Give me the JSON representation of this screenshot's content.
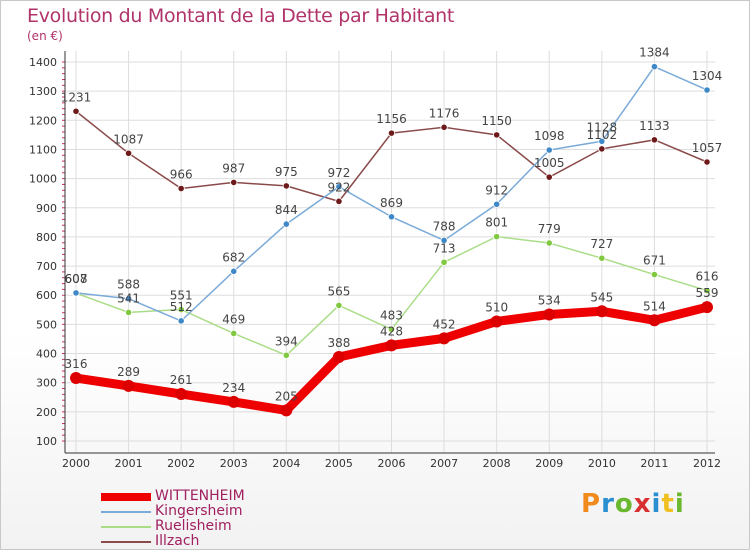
{
  "header": {
    "title": "Evolution du Montant de la Dette par Habitant",
    "subtitle": "(en €)"
  },
  "colors": {
    "title": "#b0336a",
    "grid": "#dddddd",
    "axis": "#333333",
    "tick_minor": "#cc3366"
  },
  "logo": {
    "text": "Proxiti",
    "colors": [
      "#f08a1c",
      "#2a8fd0",
      "#6ab82e",
      "#d83030",
      "#2a8fd0",
      "#f0c020",
      "#6ab82e"
    ]
  },
  "chart_data": {
    "type": "line",
    "title": "Evolution du Montant de la Dette par Habitant",
    "subtitle": "(en €)",
    "xlabel": "",
    "ylabel": "",
    "x": [
      "2000",
      "2001",
      "2002",
      "2003",
      "2004",
      "2005",
      "2006",
      "2007",
      "2008",
      "2009",
      "2010",
      "2011",
      "2012"
    ],
    "ylim": [
      100,
      1400
    ],
    "yticks": [
      100,
      200,
      300,
      400,
      500,
      600,
      700,
      800,
      900,
      1000,
      1100,
      1200,
      1300,
      1400
    ],
    "grid": true,
    "legend_position": "bottom-left",
    "series": [
      {
        "name": "WITTENHEIM",
        "color": "#ee0000",
        "marker": "#dd0000",
        "width": 9,
        "r": 6,
        "values": [
          316,
          289,
          261,
          234,
          205,
          388,
          428,
          452,
          510,
          534,
          545,
          514,
          559
        ],
        "labels": [
          "316",
          "289",
          "261",
          "234",
          "205",
          "388",
          "428",
          "452",
          "510",
          "534",
          "545",
          "514",
          "559"
        ]
      },
      {
        "name": "Kingersheim",
        "color": "#7aaad8",
        "marker": "#3f88c8",
        "width": 1.5,
        "r": 3.2,
        "values": [
          608,
          588,
          512,
          682,
          844,
          972,
          869,
          788,
          912,
          1098,
          1128,
          1384,
          1304
        ],
        "labels": [
          "608",
          "588",
          "512",
          "682",
          "844",
          "972",
          "869",
          "788",
          "912",
          "1098",
          "1128",
          "1384",
          "1304"
        ]
      },
      {
        "name": "Ruelisheim",
        "color": "#aadd88",
        "marker": "#80c840",
        "width": 1.5,
        "r": 3.2,
        "values": [
          607,
          541,
          551,
          469,
          394,
          565,
          483,
          713,
          801,
          779,
          727,
          671,
          616
        ],
        "labels": [
          "607",
          "541",
          "551",
          "469",
          "394",
          "565",
          "483",
          "713",
          "801",
          "779",
          "727",
          "671",
          "616"
        ]
      },
      {
        "name": "Illzach",
        "color": "#8a4a4a",
        "marker": "#6e1a1a",
        "width": 1.5,
        "r": 3.2,
        "values": [
          1231,
          1087,
          966,
          987,
          975,
          922,
          1156,
          1176,
          1150,
          1005,
          1102,
          1133,
          1057
        ],
        "labels": [
          "1231",
          "1087",
          "966",
          "987",
          "975",
          "922",
          "1156",
          "1176",
          "1150",
          "1005",
          "1102",
          "1133",
          "1057"
        ]
      }
    ]
  }
}
